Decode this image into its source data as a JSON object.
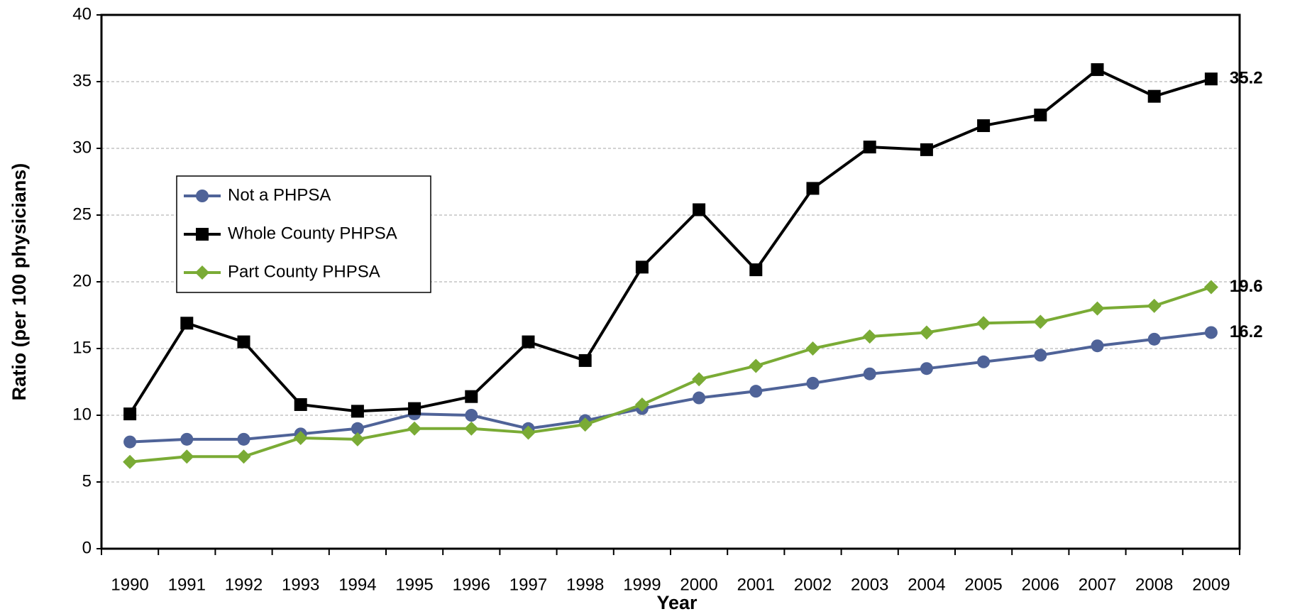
{
  "chart_data": {
    "type": "line",
    "x_label": "Year",
    "y_label": "Ratio (per 100 physicians)",
    "categories": [
      "1990",
      "1991",
      "1992",
      "1993",
      "1994",
      "1995",
      "1996",
      "1997",
      "1998",
      "1999",
      "2000",
      "2001",
      "2002",
      "2003",
      "2004",
      "2005",
      "2006",
      "2007",
      "2008",
      "2009"
    ],
    "series": [
      {
        "name": "Not a PHPSA",
        "color": "#4f6398",
        "marker": "circle",
        "values": [
          8.0,
          8.2,
          8.2,
          8.6,
          9.0,
          10.1,
          10.0,
          9.0,
          9.6,
          10.5,
          11.3,
          11.8,
          12.4,
          13.1,
          13.5,
          14.0,
          14.5,
          15.2,
          15.7,
          16.2
        ]
      },
      {
        "name": "Whole County PHPSA",
        "color": "#000000",
        "marker": "square",
        "values": [
          10.1,
          16.9,
          15.5,
          10.8,
          10.3,
          10.5,
          11.4,
          15.5,
          14.1,
          21.1,
          25.4,
          20.9,
          27.0,
          30.1,
          29.9,
          31.7,
          32.5,
          35.9,
          33.9,
          35.2
        ]
      },
      {
        "name": "Part County PHPSA",
        "color": "#7aab35",
        "marker": "diamond",
        "values": [
          6.5,
          6.9,
          6.9,
          8.3,
          8.2,
          9.0,
          9.0,
          8.7,
          9.3,
          10.8,
          12.7,
          13.7,
          15.0,
          15.9,
          16.2,
          16.9,
          17.0,
          18.0,
          18.2,
          19.6
        ]
      }
    ],
    "label_last": true,
    "ylim": [
      0,
      40
    ],
    "yticks": [
      0,
      5,
      10,
      15,
      20,
      25,
      30,
      35,
      40
    ],
    "grid": true,
    "legend": "upper left"
  }
}
